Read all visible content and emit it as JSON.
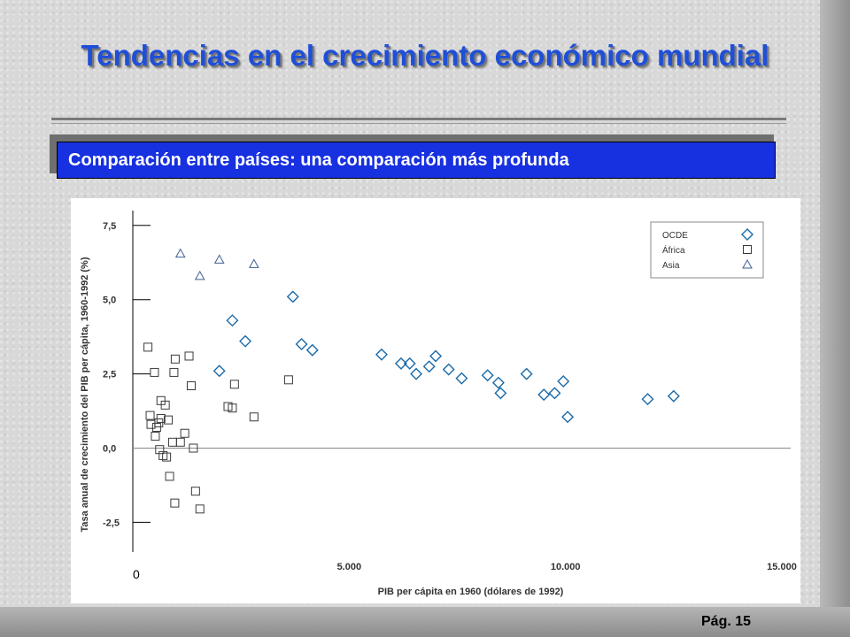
{
  "slide": {
    "title": "Tendencias en el crecimiento económico mundial",
    "subtitle": "Comparación entre países: una comparación más profunda",
    "page_label": "Pág. 15"
  },
  "colors": {
    "title": "#1f4fd8",
    "subtitle_bg": "#1730e0",
    "marker": "#3f5f8f",
    "oecd_marker": "#1a6aa8"
  },
  "chart_data": {
    "type": "scatter",
    "xlabel": "PIB per cápita en 1960 (dólares de 1992)",
    "ylabel": "Tasa anual de crecimiento del PIB per cápita, 1960-1992 (%)",
    "xlim": [
      0,
      15000
    ],
    "ylim": [
      -3.5,
      8
    ],
    "x_ticks": [
      {
        "value": 0,
        "label": "0"
      },
      {
        "value": 5000,
        "label": "5.000"
      },
      {
        "value": 10000,
        "label": "10.000"
      },
      {
        "value": 15000,
        "label": "15.000"
      }
    ],
    "y_ticks": [
      {
        "value": 7.5,
        "label": "7,5"
      },
      {
        "value": 5.0,
        "label": "5,0"
      },
      {
        "value": 2.5,
        "label": "2,5"
      },
      {
        "value": 0.0,
        "label": "0,0"
      },
      {
        "value": -2.5,
        "label": "-2,5"
      }
    ],
    "legend_position": "top-right",
    "series": [
      {
        "name": "OCDE",
        "marker": "diamond",
        "points": [
          {
            "x": 2000,
            "y": 2.6
          },
          {
            "x": 2300,
            "y": 4.3
          },
          {
            "x": 2600,
            "y": 3.6
          },
          {
            "x": 3700,
            "y": 5.1
          },
          {
            "x": 3900,
            "y": 3.5
          },
          {
            "x": 4150,
            "y": 3.3
          },
          {
            "x": 5750,
            "y": 3.15
          },
          {
            "x": 6200,
            "y": 2.85
          },
          {
            "x": 6400,
            "y": 2.85
          },
          {
            "x": 6550,
            "y": 2.5
          },
          {
            "x": 6850,
            "y": 2.75
          },
          {
            "x": 7000,
            "y": 3.1
          },
          {
            "x": 7300,
            "y": 2.65
          },
          {
            "x": 7600,
            "y": 2.35
          },
          {
            "x": 8200,
            "y": 2.45
          },
          {
            "x": 8450,
            "y": 2.2
          },
          {
            "x": 8500,
            "y": 1.85
          },
          {
            "x": 9100,
            "y": 2.5
          },
          {
            "x": 9500,
            "y": 1.8
          },
          {
            "x": 9750,
            "y": 1.85
          },
          {
            "x": 9950,
            "y": 2.25
          },
          {
            "x": 10050,
            "y": 1.05
          },
          {
            "x": 11900,
            "y": 1.65
          },
          {
            "x": 12500,
            "y": 1.75
          }
        ]
      },
      {
        "name": "África",
        "marker": "square",
        "points": [
          {
            "x": 350,
            "y": 3.4
          },
          {
            "x": 400,
            "y": 1.1
          },
          {
            "x": 420,
            "y": 0.8
          },
          {
            "x": 500,
            "y": 2.55
          },
          {
            "x": 520,
            "y": 0.4
          },
          {
            "x": 550,
            "y": 0.7
          },
          {
            "x": 600,
            "y": 0.85
          },
          {
            "x": 620,
            "y": -0.05
          },
          {
            "x": 650,
            "y": 1.6
          },
          {
            "x": 650,
            "y": 1.0
          },
          {
            "x": 700,
            "y": -0.25
          },
          {
            "x": 750,
            "y": 1.45
          },
          {
            "x": 780,
            "y": -0.3
          },
          {
            "x": 820,
            "y": 0.95
          },
          {
            "x": 850,
            "y": -0.95
          },
          {
            "x": 920,
            "y": 0.2
          },
          {
            "x": 950,
            "y": 2.55
          },
          {
            "x": 970,
            "y": -1.85
          },
          {
            "x": 980,
            "y": 3.0
          },
          {
            "x": 1100,
            "y": 0.2
          },
          {
            "x": 1200,
            "y": 0.5
          },
          {
            "x": 1300,
            "y": 3.1
          },
          {
            "x": 1350,
            "y": 2.1
          },
          {
            "x": 1400,
            "y": 0.0
          },
          {
            "x": 1450,
            "y": -1.45
          },
          {
            "x": 1550,
            "y": -2.05
          },
          {
            "x": 2200,
            "y": 1.4
          },
          {
            "x": 2300,
            "y": 1.35
          },
          {
            "x": 2350,
            "y": 2.15
          },
          {
            "x": 2800,
            "y": 1.05
          },
          {
            "x": 3600,
            "y": 2.3
          }
        ]
      },
      {
        "name": "Asia",
        "marker": "triangle",
        "points": [
          {
            "x": 1100,
            "y": 6.55
          },
          {
            "x": 1550,
            "y": 5.8
          },
          {
            "x": 2000,
            "y": 6.35
          },
          {
            "x": 2800,
            "y": 6.2
          }
        ]
      }
    ]
  }
}
